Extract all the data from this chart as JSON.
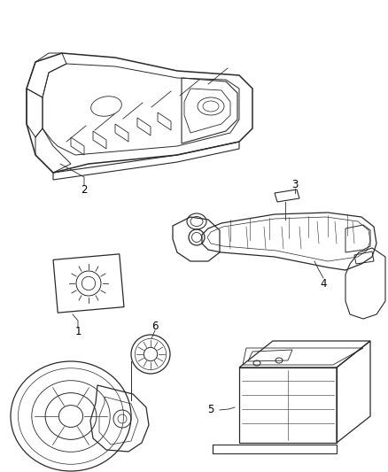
{
  "background_color": "#ffffff",
  "line_color": "#2a2a2a",
  "label_color": "#000000",
  "label_fontsize": 8.5,
  "fig_width": 4.38,
  "fig_height": 5.33,
  "dpi": 100
}
